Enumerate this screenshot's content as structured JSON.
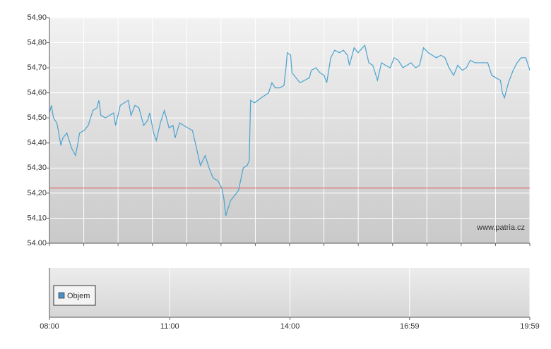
{
  "chart_data": [
    {
      "type": "line",
      "xlim": [
        "08:00",
        "19:59"
      ],
      "ylim": [
        54.0,
        54.9
      ],
      "yticks": [
        {
          "value": 54.0,
          "label": "54.00"
        },
        {
          "value": 54.1,
          "label": "54,10"
        },
        {
          "value": 54.2,
          "label": "54,20"
        },
        {
          "value": 54.3,
          "label": "54,30"
        },
        {
          "value": 54.4,
          "label": "54,40"
        },
        {
          "value": 54.5,
          "label": "54,50"
        },
        {
          "value": 54.6,
          "label": "54,60"
        },
        {
          "value": 54.7,
          "label": "54,70"
        },
        {
          "value": 54.8,
          "label": "54,80"
        },
        {
          "value": 54.9,
          "label": "54,90"
        }
      ],
      "grid": true,
      "reference_line": {
        "value": 54.22,
        "color": "#e05a5a"
      },
      "watermark": "www.patria.cz",
      "x": [
        "08:00",
        "08:03",
        "08:06",
        "08:11",
        "08:14",
        "08:17",
        "08:20",
        "08:26",
        "08:33",
        "08:39",
        "08:42",
        "08:45",
        "08:52",
        "08:58",
        "09:05",
        "09:11",
        "09:14",
        "09:17",
        "09:24",
        "09:30",
        "09:36",
        "09:39",
        "09:46",
        "09:52",
        "09:58",
        "10:02",
        "10:08",
        "10:14",
        "10:21",
        "10:27",
        "10:30",
        "10:36",
        "10:40",
        "10:46",
        "10:52",
        "10:59",
        "11:05",
        "11:08",
        "11:15",
        "11:21",
        "11:27",
        "11:34",
        "11:40",
        "11:46",
        "11:53",
        "11:59",
        "12:05",
        "12:12",
        "12:18",
        "12:21",
        "12:24",
        "12:31",
        "12:37",
        "12:43",
        "12:50",
        "12:56",
        "12:59",
        "13:01",
        "13:07",
        "13:17",
        "13:28",
        "13:33",
        "13:38",
        "13:45",
        "13:51",
        "13:54",
        "13:56",
        "14:01",
        "14:03",
        "14:15",
        "14:29",
        "14:32",
        "14:39",
        "14:45",
        "14:51",
        "14:55",
        "15:01",
        "15:07",
        "15:14",
        "15:20",
        "15:26",
        "15:29",
        "15:36",
        "15:42",
        "15:52",
        "15:58",
        "16:04",
        "16:11",
        "16:17",
        "16:23",
        "16:30",
        "16:36",
        "16:42",
        "16:49",
        "16:55",
        "17:01",
        "17:08",
        "17:14",
        "17:20",
        "17:27",
        "17:33",
        "17:39",
        "17:46",
        "17:52",
        "17:58",
        "18:05",
        "18:11",
        "18:18",
        "18:24",
        "18:30",
        "18:37",
        "18:43",
        "18:49",
        "18:56",
        "19:02",
        "19:08",
        "19:15",
        "19:18",
        "19:21",
        "19:27",
        "19:34",
        "19:40",
        "19:46",
        "19:53",
        "19:59"
      ],
      "series": [
        {
          "color": "#4aa3cf",
          "values": [
            54.52,
            54.55,
            54.5,
            54.48,
            54.44,
            54.39,
            54.42,
            54.44,
            54.38,
            54.35,
            54.39,
            54.44,
            54.45,
            54.47,
            54.53,
            54.54,
            54.57,
            54.51,
            54.5,
            54.51,
            54.52,
            54.47,
            54.55,
            54.56,
            54.57,
            54.51,
            54.55,
            54.54,
            54.47,
            54.49,
            54.52,
            54.44,
            54.41,
            54.48,
            54.53,
            54.46,
            54.47,
            54.42,
            54.48,
            54.47,
            54.46,
            54.45,
            54.38,
            54.31,
            54.35,
            54.3,
            54.26,
            54.25,
            54.22,
            54.18,
            54.11,
            54.17,
            54.19,
            54.21,
            54.3,
            54.31,
            54.33,
            54.57,
            54.56,
            54.58,
            54.6,
            54.64,
            54.62,
            54.62,
            54.63,
            54.7,
            54.76,
            54.75,
            54.68,
            54.64,
            54.66,
            54.69,
            54.7,
            54.68,
            54.67,
            54.64,
            54.74,
            54.77,
            54.76,
            54.77,
            54.75,
            54.71,
            54.78,
            54.76,
            54.79,
            54.72,
            54.71,
            54.65,
            54.72,
            54.71,
            54.7,
            54.74,
            54.73,
            54.7,
            54.71,
            54.72,
            54.7,
            54.71,
            54.78,
            54.76,
            54.75,
            54.74,
            54.75,
            54.74,
            54.7,
            54.67,
            54.71,
            54.69,
            54.7,
            54.73,
            54.72,
            54.72,
            54.72,
            54.72,
            54.67,
            54.66,
            54.65,
            54.6,
            54.58,
            54.64,
            54.69,
            54.72,
            54.74,
            54.74,
            54.69
          ]
        }
      ]
    },
    {
      "type": "bar",
      "xlim": [
        "08:00",
        "19:59"
      ],
      "xticks": [
        "08:00",
        "11:00",
        "14:00",
        "16:59",
        "19:59"
      ],
      "x": [],
      "series": [
        {
          "name": "Objem",
          "color": "#4a90c8",
          "values": []
        }
      ]
    }
  ]
}
